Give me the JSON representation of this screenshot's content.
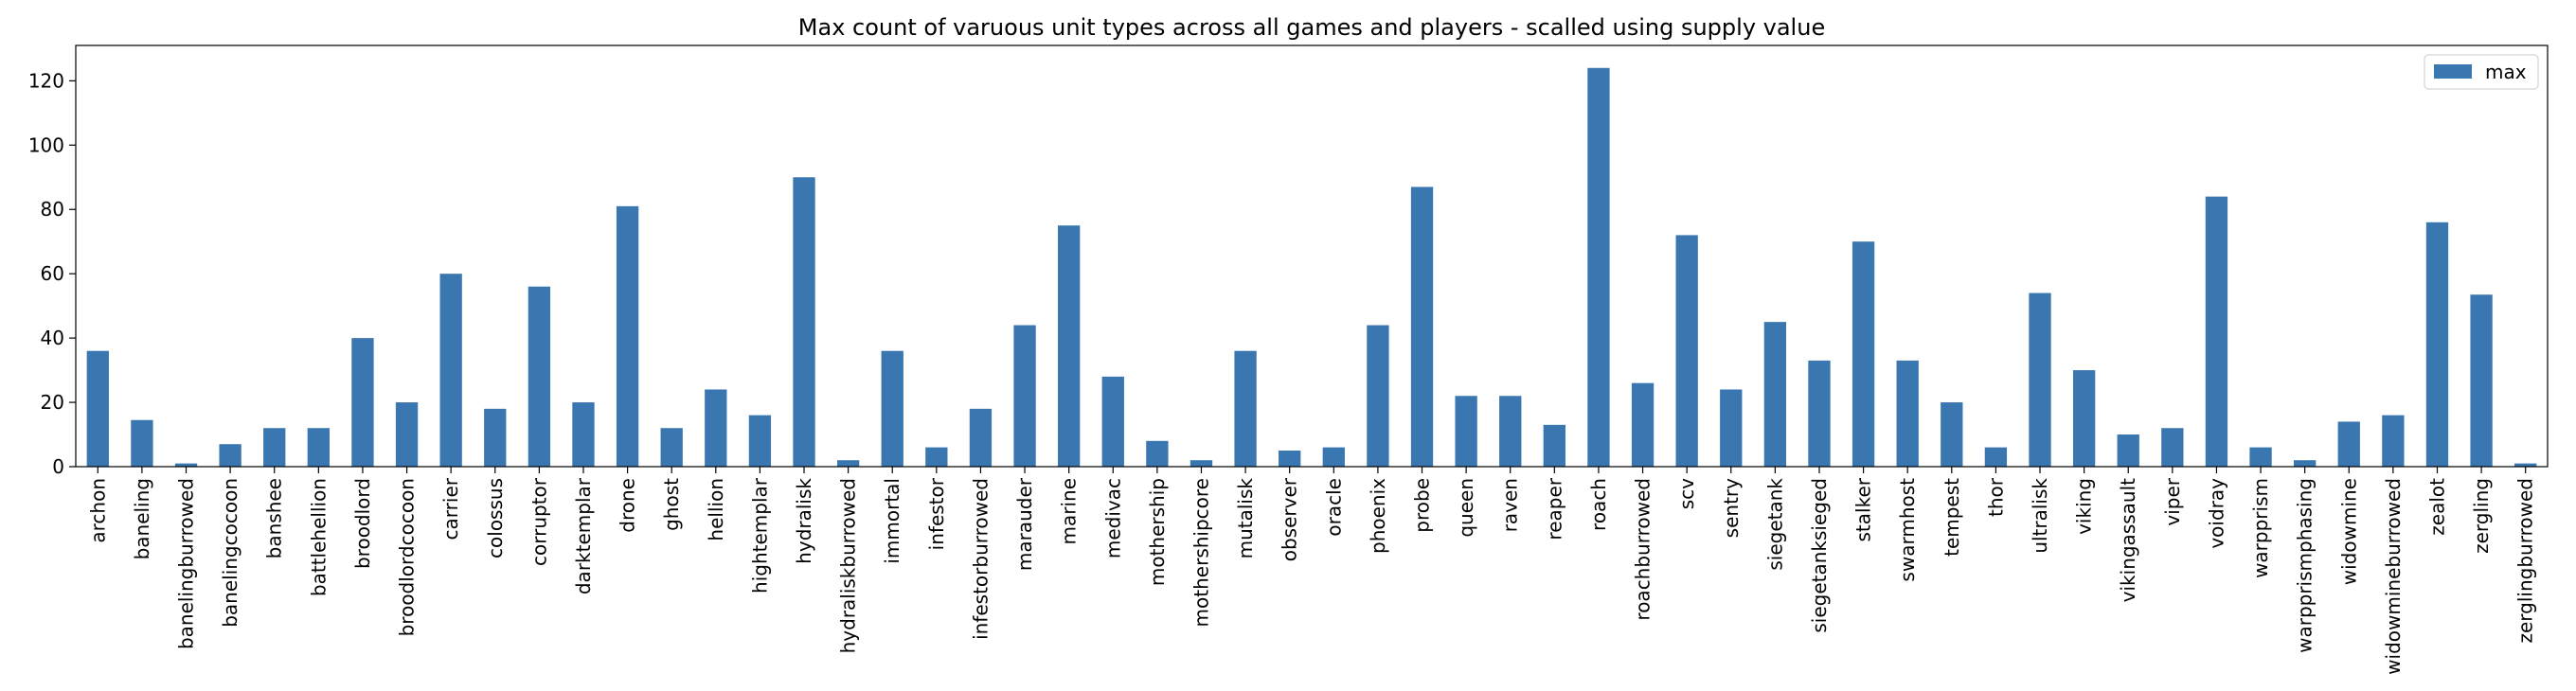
{
  "chart_data": {
    "type": "bar",
    "title": "Max count of varuous unit types across all games and players - scalled using supply value",
    "xlabel": "",
    "ylabel": "",
    "ylim": [
      0,
      131
    ],
    "yticks": [
      0,
      20,
      40,
      60,
      80,
      100,
      120
    ],
    "legend": {
      "position": "top-right",
      "entries": [
        "max"
      ]
    },
    "grid": false,
    "colors": {
      "bar": "#3a76af"
    },
    "categories": [
      "archon",
      "baneling",
      "banelingburrowed",
      "banelingcocoon",
      "banshee",
      "battlehellion",
      "broodlord",
      "broodlordcocoon",
      "carrier",
      "colossus",
      "corruptor",
      "darktemplar",
      "drone",
      "ghost",
      "hellion",
      "hightemplar",
      "hydralisk",
      "hydraliskburrowed",
      "immortal",
      "infestor",
      "infestorburrowed",
      "marauder",
      "marine",
      "medivac",
      "mothership",
      "mothershipcore",
      "mutalisk",
      "observer",
      "oracle",
      "phoenix",
      "probe",
      "queen",
      "raven",
      "reaper",
      "roach",
      "roachburrowed",
      "scv",
      "sentry",
      "siegetank",
      "siegetanksieged",
      "stalker",
      "swarmhost",
      "tempest",
      "thor",
      "ultralisk",
      "viking",
      "vikingassault",
      "viper",
      "voidray",
      "warpprism",
      "warpprismphasing",
      "widowmine",
      "widowmineburrowed",
      "zealot",
      "zergling",
      "zerglingburrowed"
    ],
    "series": [
      {
        "name": "max",
        "values": [
          36,
          14.5,
          1,
          7,
          12,
          12,
          40,
          20,
          60,
          18,
          56,
          20,
          81,
          12,
          24,
          16,
          90,
          2,
          36,
          6,
          18,
          44,
          75,
          28,
          8,
          2,
          36,
          5,
          6,
          44,
          87,
          22,
          22,
          13,
          124,
          26,
          72,
          24,
          45,
          33,
          70,
          33,
          20,
          6,
          54,
          30,
          10,
          12,
          84,
          6,
          2,
          14,
          16,
          76,
          53.5,
          1
        ]
      }
    ]
  }
}
